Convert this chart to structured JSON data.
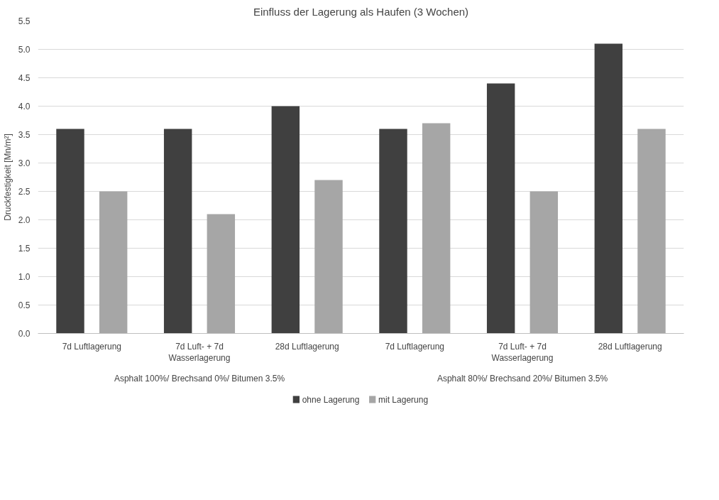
{
  "chart_data": {
    "type": "bar",
    "title": "Einfluss der Lagerung als Haufen (3 Wochen)",
    "ylabel": "Druckfestigkeit [Mn/m²]",
    "categories": [
      "7d Luftlagerung",
      "7d Luft- + 7d Wasserlagerung",
      "28d Luftlagerung",
      "7d Luftlagerung",
      "7d Luft- + 7d Wasserlagerung",
      "28d Luftlagerung"
    ],
    "series": [
      {
        "name": "ohne Lagerung",
        "color": "#404040",
        "values": [
          3.6,
          3.6,
          4.0,
          3.6,
          4.4,
          5.1
        ]
      },
      {
        "name": "mit Lagerung",
        "color": "#a6a6a6",
        "values": [
          2.5,
          2.1,
          2.7,
          3.7,
          2.5,
          3.6
        ]
      }
    ],
    "ylim": [
      0,
      5.5
    ],
    "yticks": [
      {
        "value": 0,
        "label": "0.0"
      },
      {
        "value": 0.5,
        "label": "0.5"
      },
      {
        "value": 1,
        "label": "1.0"
      },
      {
        "value": 1.5,
        "label": "1.5"
      },
      {
        "value": 2,
        "label": "2.0"
      },
      {
        "value": 2.5,
        "label": "2.5"
      },
      {
        "value": 3,
        "label": "3.0"
      },
      {
        "value": 3.5,
        "label": "3.5"
      },
      {
        "value": 4,
        "label": "4.0"
      },
      {
        "value": 4.5,
        "label": "4.5"
      },
      {
        "value": 5,
        "label": "5.0"
      },
      {
        "value": 5.5,
        "label": "5.5"
      }
    ],
    "grid": "y",
    "legend": "bottom",
    "annotations": [
      "Asphalt 100%/ Brechsand 0%/ Bitumen 3.5%",
      "Asphalt 80%/ Brechsand 20%/ Bitumen 3.5%"
    ]
  }
}
